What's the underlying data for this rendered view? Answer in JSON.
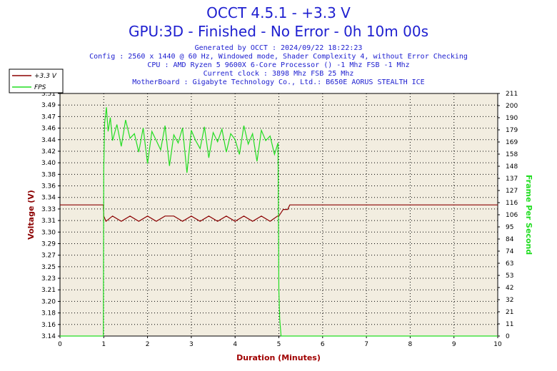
{
  "header": {
    "title": "OCCT 4.5.1 - +3.3 V",
    "subtitle": "GPU:3D - Finished - No Error - 0h 10m 00s",
    "info": [
      "Generated by OCCT : 2024/09/22 18:22:23",
      "Config : 2560 x 1440 @ 60 Hz, Windowed mode, Shader Complexity 4, without Error Checking",
      "CPU : AMD Ryzen 5 9600X 6-Core Processor () -1 Mhz FSB -1 Mhz",
      "Current clock : 3898 Mhz FSB 25 Mhz",
      "MotherBoard : Gigabyte Technology Co., Ltd.: B650E AORUS STEALTH ICE"
    ]
  },
  "colors": {
    "voltage": "#8b0000",
    "fps": "#22dd22",
    "title": "#1f20d0",
    "plot_bg": "#f2ede0",
    "grid": "#000000",
    "xlabel": "#a00000"
  },
  "chart_data": {
    "type": "line",
    "xlabel": "Duration (Minutes)",
    "ylabel_left": "Voltage (V)",
    "ylabel_right": "Frame Per Second",
    "xlim": [
      0,
      10
    ],
    "x_ticks": [
      "0",
      "1",
      "2",
      "3",
      "4",
      "5",
      "6",
      "7",
      "8",
      "9",
      "10"
    ],
    "y_left_ticks": [
      "3.14",
      "3.16",
      "3.18",
      "3.20",
      "3.21",
      "3.23",
      "3.25",
      "3.27",
      "3.29",
      "3.30",
      "3.31",
      "3.33",
      "3.34",
      "3.36",
      "3.38",
      "3.40",
      "3.42",
      "3.44",
      "3.46",
      "3.47",
      "3.49",
      "3.51"
    ],
    "y_right_ticks": [
      "0",
      "11",
      "21",
      "32",
      "42",
      "53",
      "63",
      "74",
      "84",
      "95",
      "106",
      "116",
      "127",
      "137",
      "148",
      "158",
      "169",
      "179",
      "190",
      "200",
      "211"
    ],
    "ylim_left": [
      3.14,
      3.51
    ],
    "ylim_right": [
      0,
      211
    ],
    "grid": true,
    "legend_position": "top-left",
    "series": [
      {
        "name": "+3.3 V",
        "axis": "left",
        "x": [
          0,
          0.99,
          1.0,
          1.05,
          1.2,
          1.4,
          1.6,
          1.8,
          2.0,
          2.2,
          2.4,
          2.6,
          2.8,
          3.0,
          3.2,
          3.4,
          3.6,
          3.8,
          4.0,
          4.2,
          4.4,
          4.6,
          4.8,
          4.97,
          5.0,
          5.1,
          5.2,
          5.25,
          5.3,
          10.0
        ],
        "values": [
          3.34,
          3.34,
          3.323,
          3.315,
          3.323,
          3.315,
          3.323,
          3.315,
          3.323,
          3.315,
          3.323,
          3.323,
          3.315,
          3.323,
          3.315,
          3.323,
          3.315,
          3.323,
          3.315,
          3.323,
          3.315,
          3.323,
          3.315,
          3.323,
          3.323,
          3.333,
          3.333,
          3.34,
          3.34,
          3.34
        ]
      },
      {
        "name": "FPS",
        "axis": "right",
        "x": [
          0,
          0.99,
          1.0,
          1.02,
          1.06,
          1.1,
          1.15,
          1.2,
          1.3,
          1.4,
          1.5,
          1.6,
          1.7,
          1.8,
          1.9,
          2.0,
          2.1,
          2.2,
          2.3,
          2.4,
          2.5,
          2.6,
          2.7,
          2.8,
          2.9,
          3.0,
          3.1,
          3.2,
          3.3,
          3.4,
          3.5,
          3.6,
          3.7,
          3.8,
          3.9,
          4.0,
          4.1,
          4.2,
          4.3,
          4.4,
          4.5,
          4.6,
          4.7,
          4.8,
          4.9,
          4.98,
          5.0,
          5.02,
          5.05,
          10.0
        ],
        "values": [
          0,
          0,
          145,
          185,
          199,
          178,
          190,
          170,
          184,
          165,
          188,
          172,
          176,
          160,
          181,
          150,
          178,
          170,
          162,
          183,
          148,
          175,
          168,
          181,
          142,
          179,
          170,
          163,
          182,
          155,
          177,
          169,
          180,
          160,
          176,
          171,
          158,
          183,
          167,
          176,
          152,
          179,
          170,
          174,
          158,
          168,
          40,
          15,
          0,
          0
        ]
      }
    ]
  }
}
